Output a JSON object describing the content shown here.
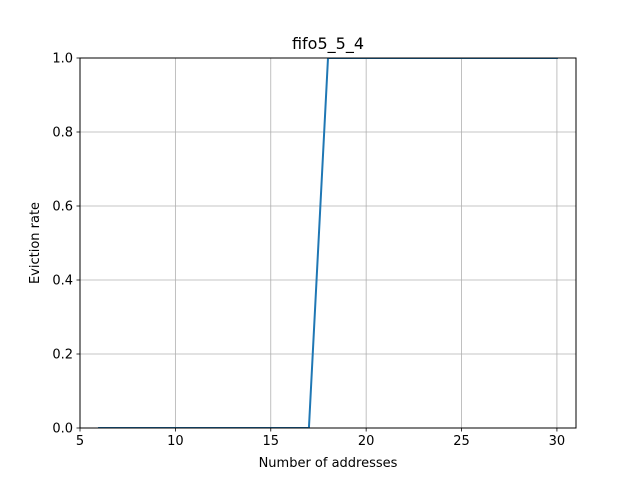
{
  "chart_data": {
    "type": "line",
    "title": "fifo5_5_4",
    "xlabel": "Number of addresses",
    "ylabel": "Eviction rate",
    "xlim": [
      5,
      31
    ],
    "ylim": [
      0,
      1.0
    ],
    "xticks": [
      5,
      10,
      15,
      20,
      25,
      30
    ],
    "yticks": [
      0.0,
      0.2,
      0.4,
      0.6,
      0.8,
      1.0
    ],
    "xtick_labels": [
      "5",
      "10",
      "15",
      "20",
      "25",
      "30"
    ],
    "ytick_labels": [
      "0.0",
      "0.2",
      "0.4",
      "0.6",
      "0.8",
      "1.0"
    ],
    "grid": true,
    "series": [
      {
        "color": "#1f77b4",
        "x": [
          6,
          7,
          8,
          9,
          10,
          11,
          12,
          13,
          14,
          15,
          16,
          17,
          18,
          19,
          20,
          21,
          22,
          23,
          24,
          25,
          26,
          27,
          28,
          29,
          30
        ],
        "y": [
          0,
          0,
          0,
          0,
          0,
          0,
          0,
          0,
          0,
          0,
          0,
          0,
          1.0,
          1.0,
          1.0,
          1.0,
          1.0,
          1.0,
          1.0,
          1.0,
          1.0,
          1.0,
          1.0,
          1.0,
          1.0
        ]
      }
    ]
  }
}
